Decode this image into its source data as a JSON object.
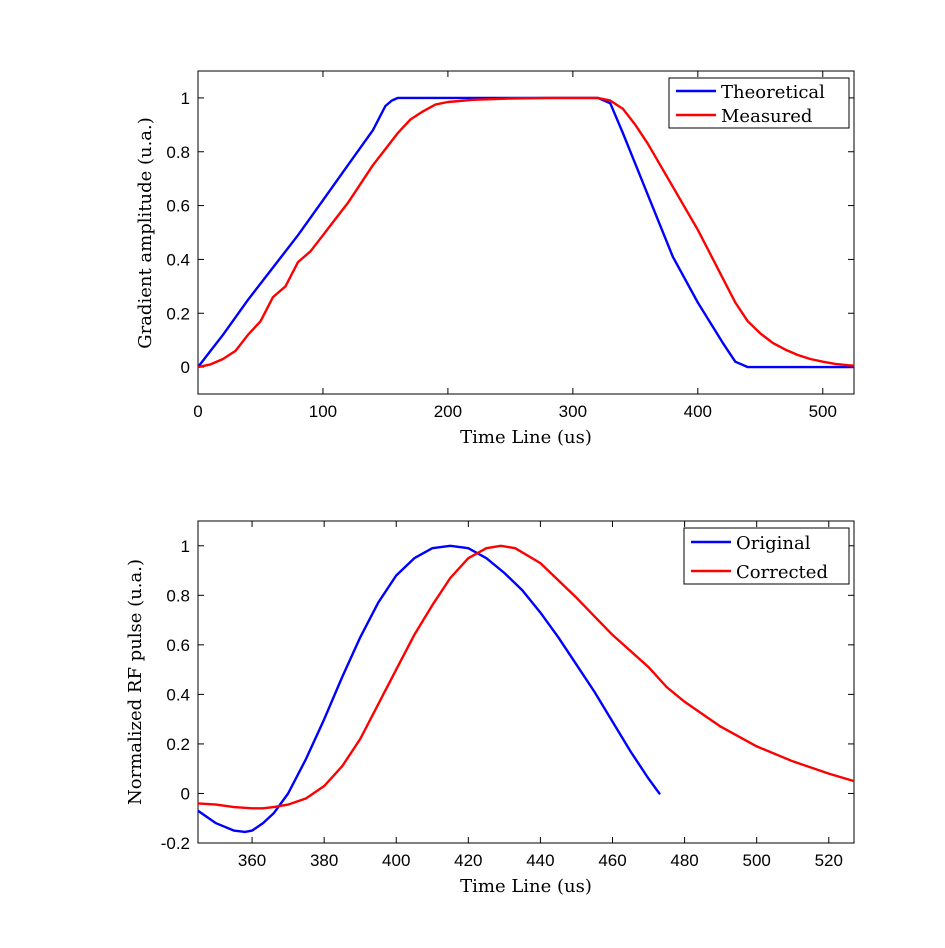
{
  "chart_data": [
    {
      "type": "line",
      "xlabel": "Time Line (us)",
      "ylabel": "Gradient amplitude (u.a.)",
      "xlim": [
        0,
        525
      ],
      "ylim": [
        -0.1,
        1.1
      ],
      "xticks": [
        0,
        100,
        200,
        300,
        400,
        500
      ],
      "yticks": [
        0,
        0.2,
        0.4,
        0.6,
        0.8,
        1
      ],
      "grid": false,
      "legend_position": "top-right",
      "series": [
        {
          "name": "Theoretical",
          "color": "#0000ff",
          "x": [
            0,
            10,
            20,
            40,
            60,
            80,
            100,
            120,
            140,
            150,
            155,
            160,
            200,
            250,
            300,
            320,
            330,
            340,
            360,
            380,
            400,
            420,
            430,
            440,
            450,
            525
          ],
          "y": [
            0,
            0.06,
            0.12,
            0.25,
            0.37,
            0.49,
            0.62,
            0.75,
            0.88,
            0.97,
            0.99,
            1.0,
            1.0,
            1.0,
            1.0,
            1.0,
            0.98,
            0.87,
            0.64,
            0.41,
            0.24,
            0.09,
            0.02,
            0.0,
            0.0,
            0.0
          ]
        },
        {
          "name": "Measured",
          "color": "#ff0000",
          "x": [
            0,
            10,
            20,
            30,
            40,
            50,
            60,
            70,
            80,
            90,
            100,
            110,
            120,
            130,
            140,
            150,
            160,
            170,
            180,
            190,
            200,
            220,
            250,
            280,
            300,
            320,
            330,
            340,
            350,
            360,
            370,
            380,
            390,
            400,
            410,
            420,
            430,
            440,
            450,
            460,
            470,
            480,
            490,
            500,
            510,
            520,
            525
          ],
          "y": [
            0.0,
            0.01,
            0.03,
            0.06,
            0.12,
            0.17,
            0.26,
            0.3,
            0.39,
            0.43,
            0.49,
            0.55,
            0.61,
            0.68,
            0.75,
            0.81,
            0.87,
            0.92,
            0.95,
            0.975,
            0.985,
            0.993,
            0.998,
            1.0,
            1.0,
            1.0,
            0.99,
            0.96,
            0.9,
            0.83,
            0.75,
            0.67,
            0.59,
            0.51,
            0.42,
            0.33,
            0.24,
            0.17,
            0.125,
            0.09,
            0.065,
            0.045,
            0.03,
            0.02,
            0.012,
            0.007,
            0.005
          ]
        }
      ]
    },
    {
      "type": "line",
      "xlabel": "Time Line (us)",
      "ylabel": "Normalized RF pulse (u.a.)",
      "xlim": [
        345,
        527
      ],
      "ylim": [
        -0.2,
        1.1
      ],
      "xticks": [
        360,
        380,
        400,
        420,
        440,
        460,
        480,
        500,
        520
      ],
      "yticks": [
        -0.2,
        0,
        0.2,
        0.4,
        0.6,
        0.8,
        1
      ],
      "grid": false,
      "legend_position": "top-right",
      "series": [
        {
          "name": "Original",
          "color": "#0000ff",
          "x": [
            345,
            350,
            355,
            358,
            360,
            363,
            366,
            370,
            375,
            380,
            385,
            390,
            395,
            400,
            405,
            410,
            415,
            420,
            425,
            430,
            435,
            440,
            445,
            450,
            455,
            460,
            465,
            470,
            473
          ],
          "y": [
            -0.07,
            -0.12,
            -0.15,
            -0.155,
            -0.15,
            -0.12,
            -0.08,
            0.0,
            0.14,
            0.3,
            0.47,
            0.63,
            0.77,
            0.88,
            0.95,
            0.99,
            1.0,
            0.99,
            0.95,
            0.89,
            0.82,
            0.73,
            0.63,
            0.52,
            0.41,
            0.29,
            0.17,
            0.06,
            0.0
          ]
        },
        {
          "name": "Corrected",
          "color": "#ff0000",
          "x": [
            345,
            350,
            355,
            360,
            363,
            366,
            370,
            375,
            380,
            385,
            390,
            395,
            400,
            405,
            410,
            415,
            420,
            425,
            429,
            433,
            440,
            445,
            450,
            460,
            470,
            475,
            480,
            490,
            500,
            510,
            520,
            527
          ],
          "y": [
            -0.04,
            -0.045,
            -0.055,
            -0.06,
            -0.06,
            -0.055,
            -0.045,
            -0.02,
            0.03,
            0.11,
            0.22,
            0.36,
            0.5,
            0.64,
            0.76,
            0.87,
            0.95,
            0.99,
            1.0,
            0.99,
            0.93,
            0.86,
            0.79,
            0.64,
            0.51,
            0.43,
            0.37,
            0.27,
            0.19,
            0.13,
            0.08,
            0.05
          ]
        }
      ]
    }
  ]
}
